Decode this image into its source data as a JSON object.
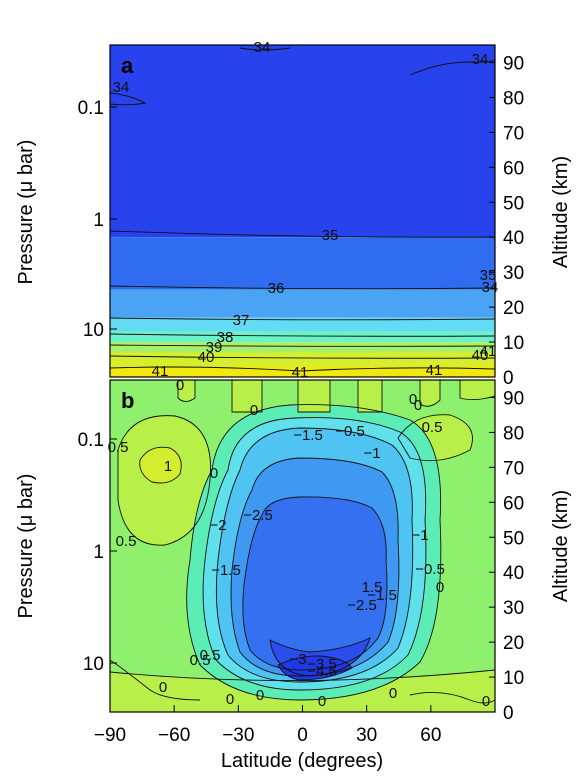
{
  "chart_data": [
    {
      "type": "heatmap",
      "panel_label": "a",
      "ylabel_left": "Pressure (μ bar)",
      "ylabel_right": "Altitude (km)",
      "y_left_scale": "log",
      "y_left_ticks": [
        "0.1",
        "1",
        "10"
      ],
      "y_right_ticks": [
        "0",
        "10",
        "20",
        "30",
        "40",
        "50",
        "60",
        "70",
        "80",
        "90"
      ],
      "y_right_range": [
        0,
        95
      ],
      "x_range": [
        -90,
        90
      ],
      "contour_labels": [
        "34",
        "34",
        "34",
        "35",
        "36",
        "37",
        "38",
        "39",
        "40",
        "41",
        "41",
        "41",
        "35",
        "34",
        "40",
        "41"
      ],
      "levels": [
        {
          "value": 34,
          "alt_top": 95,
          "alt_bottom": 40,
          "color": "#2842ee"
        },
        {
          "value": 35,
          "alt_top": 40,
          "alt_bottom": 25,
          "color": "#2f6cf0"
        },
        {
          "value": 36,
          "alt_top": 25,
          "alt_bottom": 17,
          "color": "#4aa3f3"
        },
        {
          "value": 37,
          "alt_top": 17,
          "alt_bottom": 13,
          "color": "#63dbf2"
        },
        {
          "value": 38,
          "alt_top": 13,
          "alt_bottom": 10,
          "color": "#6cf2c9"
        },
        {
          "value": 39,
          "alt_top": 10,
          "alt_bottom": 7,
          "color": "#a8f06a"
        },
        {
          "value": 40,
          "alt_top": 7,
          "alt_bottom": 3,
          "color": "#d7ee2c"
        },
        {
          "value": 41,
          "alt_top": 3,
          "alt_bottom": 0,
          "color": "#f1e80f"
        }
      ]
    },
    {
      "type": "heatmap",
      "panel_label": "b",
      "xlabel": "Latitude (degrees)",
      "ylabel_left": "Pressure (μ bar)",
      "ylabel_right": "Altitude (km)",
      "y_left_scale": "log",
      "y_left_ticks": [
        "0.1",
        "1",
        "10"
      ],
      "y_right_ticks": [
        "0",
        "10",
        "20",
        "30",
        "40",
        "50",
        "60",
        "70",
        "80",
        "90"
      ],
      "y_right_range": [
        0,
        95
      ],
      "x_ticks": [
        "−90",
        "−60",
        "−30",
        "0",
        "30",
        "60"
      ],
      "x_range": [
        -90,
        90
      ],
      "contour_labels": [
        "0.5",
        "1",
        "0.5",
        "0",
        "0",
        "0",
        "0",
        "0.5",
        "−0.5",
        "−1",
        "−1.5",
        "−2",
        "−2.5",
        "−1.5",
        "−2.5",
        "−1",
        "−0.5",
        "1.5",
        "−1.5",
        "−3",
        "−3.5",
        "−4.5",
        "0.5",
        "0.5",
        "0",
        "0",
        "0",
        "0",
        "0",
        "0",
        "0",
        "0"
      ]
    }
  ]
}
